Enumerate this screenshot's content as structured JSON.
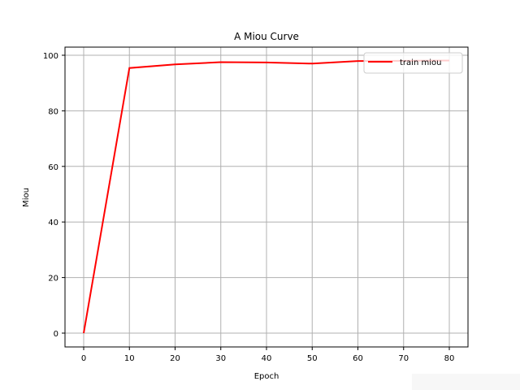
{
  "chart_data": {
    "type": "line",
    "title": "A Miou Curve",
    "xlabel": "Epoch",
    "ylabel": "Miou",
    "x": [
      0,
      10,
      20,
      30,
      40,
      50,
      60,
      70,
      80
    ],
    "series": [
      {
        "name": "train miou",
        "color": "#ff0000",
        "values": [
          0,
          95.4,
          96.7,
          97.5,
          97.4,
          97.0,
          97.9,
          98.0,
          98.1
        ]
      }
    ],
    "xticks": [
      0,
      10,
      20,
      30,
      40,
      50,
      60,
      70,
      80
    ],
    "yticks": [
      0,
      20,
      40,
      60,
      80,
      100
    ],
    "xlim": [
      -4,
      84
    ],
    "ylim": [
      -5,
      102.8
    ],
    "grid": true,
    "legend_position": "upper right"
  },
  "labels": {
    "title": "A Miou Curve",
    "xlabel": "Epoch",
    "ylabel": "Miou",
    "legend": "train miou",
    "xticks": [
      "0",
      "10",
      "20",
      "30",
      "40",
      "50",
      "60",
      "70",
      "80"
    ],
    "yticks": [
      "0",
      "20",
      "40",
      "60",
      "80",
      "100"
    ]
  }
}
